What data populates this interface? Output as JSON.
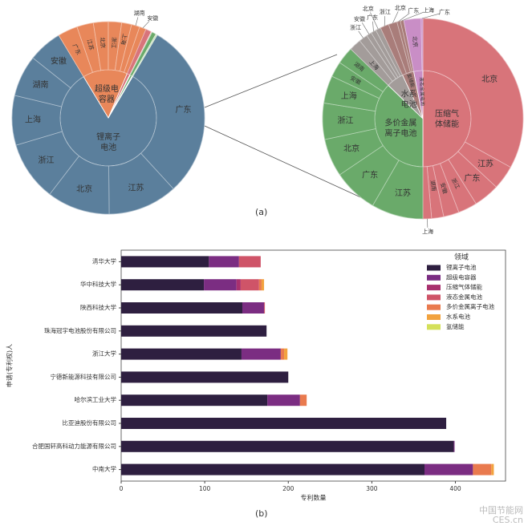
{
  "chart_data": [
    {
      "type": "sunburst",
      "panel": "(a) left",
      "note_units": "relative share (angular)",
      "inner": [
        {
          "name": "锂离子电池",
          "color": "#5b7f9c",
          "children": [
            [
              "广东",
              107
            ],
            [
              "江苏",
              42
            ],
            [
              "北京",
              38
            ],
            [
              "浙江",
              36
            ],
            [
              "上海",
              30
            ],
            [
              "湖南",
              25
            ],
            [
              "安徽",
              20.5
            ]
          ]
        },
        {
          "name": "超级电容器",
          "color": "#e8875a",
          "children": [
            [
              "广东",
              12
            ],
            [
              "江苏",
              10
            ],
            [
              "北京",
              9
            ],
            [
              "浙江",
              8
            ],
            [
              "上海",
              6
            ],
            [
              "湖南",
              5
            ],
            [
              "安徽",
              4
            ]
          ]
        },
        {
          "name": "",
          "color": "#d8747a",
          "children": [
            [
              "",
              3.5
            ]
          ]
        },
        {
          "name": "",
          "color": "#f0c8c8",
          "children": [
            [
              "",
              0.6
            ]
          ]
        },
        {
          "name": "",
          "color": "#6aaa6a",
          "children": [
            [
              "",
              2.5
            ]
          ]
        },
        {
          "name": "",
          "color": "#c8e0c0",
          "children": [
            [
              "",
              0.9
            ]
          ]
        }
      ]
    },
    {
      "type": "sunburst",
      "panel": "(a) right",
      "inner": [
        {
          "name": "压缩气体储能",
          "color": "#d8747a",
          "children": [
            [
              "北京",
              119
            ],
            [
              "江苏",
              14
            ],
            [
              "广东",
              15
            ],
            [
              "浙江",
              11
            ],
            [
              "安徽",
              9
            ],
            [
              "湖南",
              7
            ],
            [
              "上海",
              5
            ]
          ]
        },
        {
          "name": "多价金属离子电池",
          "color": "#6aaa6a",
          "children": [
            [
              "江苏",
              30
            ],
            [
              "广东",
              26
            ],
            [
              "北京",
              22
            ],
            [
              "浙江",
              21
            ],
            [
              "上海",
              16
            ],
            [
              "安徽",
              9
            ],
            [
              "湖南",
              10
            ]
          ]
        },
        {
          "name": "水系电池",
          "color": "#a39c9a",
          "children": [
            [
              "上海",
              7
            ],
            [
              "浙江",
              5
            ],
            [
              "安徽",
              3
            ],
            [
              "广东",
              3
            ],
            [
              "北京",
              3
            ]
          ]
        },
        {
          "name": "氢储能",
          "color": "#a97d7a",
          "children": [
            [
              "浙江",
              5
            ],
            [
              "北京",
              5
            ],
            [
              "广东",
              2
            ],
            [
              "上海",
              2
            ]
          ]
        },
        {
          "name": "液态金属电池",
          "color": "#c98ec6",
          "children": [
            [
              "北京",
              10
            ],
            [
              "广东",
              1
            ]
          ]
        }
      ]
    },
    {
      "type": "bar",
      "orientation": "horizontal",
      "stacked": true,
      "xlabel": "专利数量",
      "ylabel": "申请(专利权)人",
      "xlim": [
        0,
        460
      ],
      "xticks": [
        0,
        100,
        200,
        300,
        400
      ],
      "legend_title": "领域",
      "legend_position": "top-right",
      "categories": [
        "清华大学",
        "华中科技大学",
        "陕西科技大学",
        "珠海冠宇电池股份有限公司",
        "浙江大学",
        "宁德新能源科技有限公司",
        "哈尔滨工业大学",
        "比亚迪股份有限公司",
        "合肥国轩高科动力能源有限公司",
        "中南大学"
      ],
      "series": [
        {
          "name": "锂离子电池",
          "color": "#2e1f40",
          "values": [
            105,
            99,
            145,
            174,
            144,
            200,
            175,
            389,
            398,
            363
          ]
        },
        {
          "name": "超级电容器",
          "color": "#7b2d82",
          "values": [
            36,
            39,
            26,
            0,
            47,
            0,
            39,
            0,
            1,
            58
          ]
        },
        {
          "name": "压缩气体储能",
          "color": "#a8306e",
          "values": [
            0,
            5,
            0,
            0,
            0,
            0,
            0,
            0,
            0,
            0
          ]
        },
        {
          "name": "液态金属电池",
          "color": "#cf5468",
          "values": [
            26,
            22,
            1,
            0,
            0,
            0,
            0,
            0,
            0,
            0
          ]
        },
        {
          "name": "多价金属离子电池",
          "color": "#e97a4e",
          "values": [
            0,
            3,
            0,
            0,
            4,
            0,
            8,
            0,
            0,
            22
          ]
        },
        {
          "name": "水系电池",
          "color": "#f2a23e",
          "values": [
            0,
            3,
            0,
            0,
            4,
            0,
            0,
            0,
            0,
            3
          ]
        },
        {
          "name": "氢储能",
          "color": "#d4e05a",
          "values": [
            0,
            0,
            0,
            0,
            0,
            0,
            0,
            0,
            0,
            0
          ]
        }
      ]
    }
  ],
  "captions": {
    "a": "(a)",
    "b": "(b)"
  },
  "watermark": "中国节能网 CES.cn"
}
